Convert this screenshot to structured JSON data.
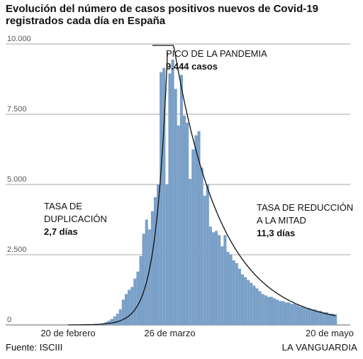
{
  "title_line1": "Evolución del número de casos positivos nuevos de Covid-19",
  "title_line2": "registrados cada día en España",
  "source": "Fuente: ISCIII",
  "brand": "LA VANGUARDIA",
  "colors": {
    "bars": "#7aa0c8",
    "grid": "#888888",
    "curve": "#111111"
  },
  "chart_data": {
    "type": "bar",
    "ylim": [
      0,
      10000
    ],
    "ytick_labels": [
      "10.000",
      "7.500",
      "5.000",
      "2.500",
      "0"
    ],
    "yticks": [
      10000,
      7500,
      5000,
      2500,
      0
    ],
    "xtick_labels": [
      "20 de febrero",
      "26 de marzo",
      "20 de mayo"
    ],
    "xtick_days": [
      0,
      35,
      90
    ],
    "first_day": "20 de febrero",
    "values": [
      0,
      0,
      0,
      0,
      0,
      0,
      0,
      5,
      10,
      15,
      20,
      30,
      60,
      100,
      150,
      210,
      300,
      400,
      560,
      900,
      1100,
      1250,
      1350,
      1650,
      1900,
      2450,
      3250,
      3750,
      3400,
      4050,
      4550,
      5000,
      9000,
      9150,
      5000,
      8950,
      9444,
      8400,
      7100,
      8900,
      7450,
      7200,
      5200,
      6250,
      6750,
      6900,
      5600,
      4600,
      5000,
      3500,
      3300,
      3350,
      3200,
      2800,
      3200,
      2600,
      2500,
      2300,
      2200,
      2000,
      1800,
      1700,
      1600,
      1500,
      1400,
      1300,
      1200,
      1100,
      1050,
      1000,
      1000,
      950,
      900,
      850,
      850,
      800,
      800,
      750,
      750,
      700,
      650,
      650,
      600,
      600,
      550,
      550,
      500,
      500,
      450,
      450,
      400,
      400,
      380
    ],
    "annotations": [
      {
        "line1": "PICO DE LA PANDEMIA",
        "line2": "9.444 casos"
      },
      {
        "line1": "TASA DE",
        "line2": "DUPLICACIÓN",
        "line3": "2,7 días"
      },
      {
        "line1": "TASA DE REDUCCIÓN",
        "line2": "A LA MITAD",
        "line3": "11,3 días"
      }
    ],
    "curves": [
      {
        "name": "TASA DE DUPLICACIÓN",
        "doubling_days": 2.7
      },
      {
        "name": "TASA DE REDUCCIÓN A LA MITAD",
        "halving_days": 11.3
      }
    ]
  }
}
